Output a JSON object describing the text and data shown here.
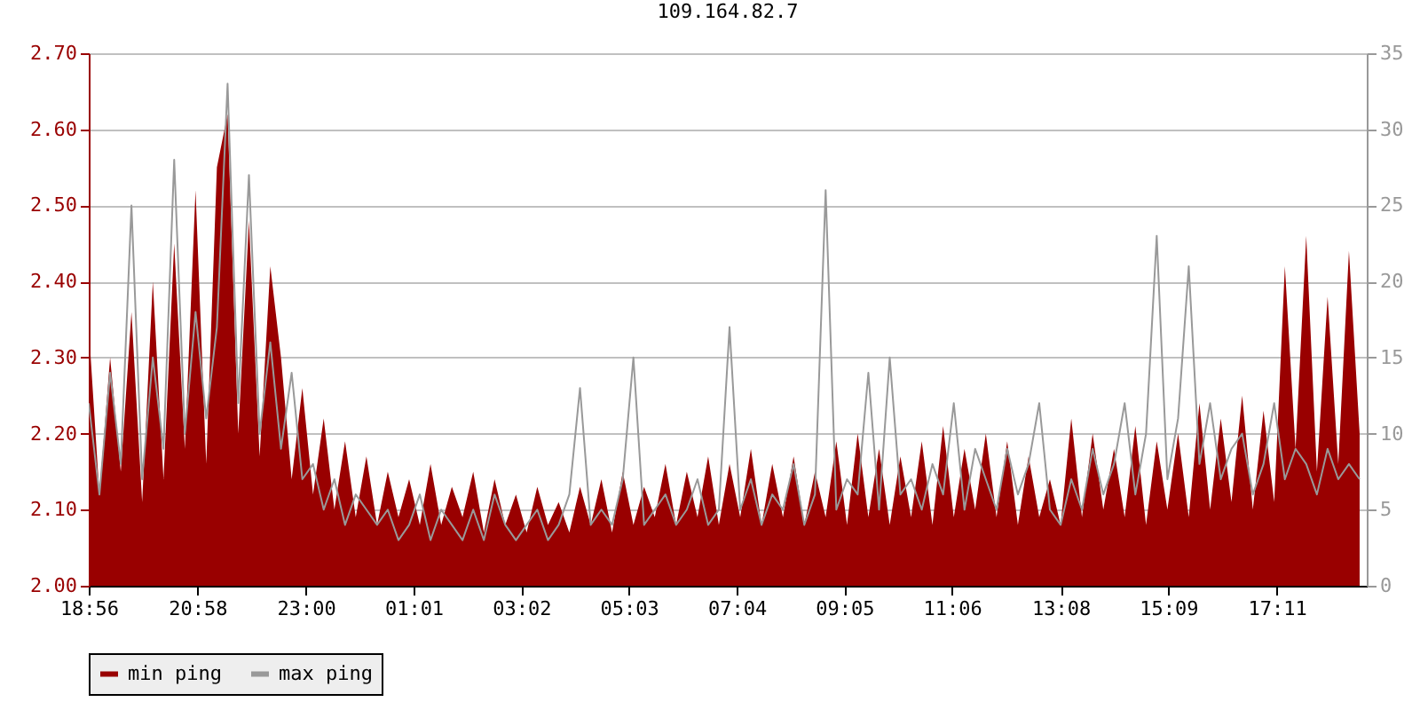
{
  "chart_data": {
    "type": "area",
    "title": "109.164.82.7",
    "x": [
      "2000-01-01T18:56",
      "2000-01-01T19:08",
      "2000-01-01T19:20",
      "2000-01-01T19:32",
      "2000-01-01T19:44",
      "2000-01-01T19:56",
      "2000-01-01T20:08",
      "2000-01-01T20:20",
      "2000-01-01T20:32",
      "2000-01-01T20:44",
      "2000-01-01T20:56",
      "2000-01-01T21:08",
      "2000-01-01T21:20",
      "2000-01-01T21:32",
      "2000-01-01T21:44",
      "2000-01-01T21:56",
      "2000-01-01T22:08",
      "2000-01-01T22:20",
      "2000-01-01T22:32",
      "2000-01-01T22:44",
      "2000-01-01T22:56",
      "2000-01-01T23:08",
      "2000-01-01T23:20",
      "2000-01-01T23:32",
      "2000-01-01T23:44",
      "2000-01-01T23:56",
      "2000-01-02T00:08",
      "2000-01-02T00:20",
      "2000-01-02T00:32",
      "2000-01-02T00:44",
      "2000-01-02T00:56",
      "2000-01-02T01:08",
      "2000-01-02T01:20",
      "2000-01-02T01:32",
      "2000-01-02T01:44",
      "2000-01-02T01:56",
      "2000-01-02T02:08",
      "2000-01-02T02:20",
      "2000-01-02T02:32",
      "2000-01-02T02:44",
      "2000-01-02T02:56",
      "2000-01-02T03:08",
      "2000-01-02T03:20",
      "2000-01-02T03:32",
      "2000-01-02T03:44",
      "2000-01-02T03:56",
      "2000-01-02T04:08",
      "2000-01-02T04:20",
      "2000-01-02T04:32",
      "2000-01-02T04:44",
      "2000-01-02T04:56",
      "2000-01-02T05:08",
      "2000-01-02T05:20",
      "2000-01-02T05:32",
      "2000-01-02T05:44",
      "2000-01-02T05:56",
      "2000-01-02T06:08",
      "2000-01-02T06:20",
      "2000-01-02T06:32",
      "2000-01-02T06:44",
      "2000-01-02T06:56",
      "2000-01-02T07:08",
      "2000-01-02T07:20",
      "2000-01-02T07:32",
      "2000-01-02T07:44",
      "2000-01-02T07:56",
      "2000-01-02T08:08",
      "2000-01-02T08:20",
      "2000-01-02T08:32",
      "2000-01-02T08:44",
      "2000-01-02T08:56",
      "2000-01-02T09:08",
      "2000-01-02T09:20",
      "2000-01-02T09:32",
      "2000-01-02T09:44",
      "2000-01-02T09:56",
      "2000-01-02T10:08",
      "2000-01-02T10:20",
      "2000-01-02T10:32",
      "2000-01-02T10:44",
      "2000-01-02T10:56",
      "2000-01-02T11:08",
      "2000-01-02T11:20",
      "2000-01-02T11:32",
      "2000-01-02T11:44",
      "2000-01-02T11:56",
      "2000-01-02T12:08",
      "2000-01-02T12:20",
      "2000-01-02T12:32",
      "2000-01-02T12:44",
      "2000-01-02T12:56",
      "2000-01-02T13:08",
      "2000-01-02T13:20",
      "2000-01-02T13:32",
      "2000-01-02T13:44",
      "2000-01-02T13:56",
      "2000-01-02T14:08",
      "2000-01-02T14:20",
      "2000-01-02T14:32",
      "2000-01-02T14:44",
      "2000-01-02T14:56",
      "2000-01-02T15:08",
      "2000-01-02T15:20",
      "2000-01-02T15:32",
      "2000-01-02T15:44",
      "2000-01-02T15:56",
      "2000-01-02T16:08",
      "2000-01-02T16:20",
      "2000-01-02T16:32",
      "2000-01-02T16:44",
      "2000-01-02T16:56",
      "2000-01-02T17:08",
      "2000-01-02T17:20",
      "2000-01-02T17:32",
      "2000-01-02T17:44",
      "2000-01-02T17:56",
      "2000-01-02T18:08",
      "2000-01-02T18:20",
      "2000-01-02T18:32",
      "2000-01-02T18:44"
    ],
    "series": [
      {
        "name": "min ping",
        "color": "#990000",
        "values": [
          2.34,
          2.12,
          2.3,
          2.15,
          2.36,
          2.11,
          2.4,
          2.14,
          2.45,
          2.18,
          2.52,
          2.16,
          2.55,
          2.62,
          2.2,
          2.48,
          2.17,
          2.42,
          2.3,
          2.14,
          2.26,
          2.12,
          2.22,
          2.1,
          2.19,
          2.09,
          2.17,
          2.08,
          2.15,
          2.09,
          2.14,
          2.08,
          2.16,
          2.08,
          2.13,
          2.09,
          2.15,
          2.07,
          2.14,
          2.08,
          2.12,
          2.07,
          2.13,
          2.08,
          2.11,
          2.07,
          2.13,
          2.08,
          2.14,
          2.07,
          2.15,
          2.08,
          2.13,
          2.09,
          2.16,
          2.08,
          2.15,
          2.09,
          2.17,
          2.08,
          2.16,
          2.09,
          2.18,
          2.08,
          2.16,
          2.09,
          2.17,
          2.08,
          2.15,
          2.09,
          2.19,
          2.08,
          2.2,
          2.09,
          2.18,
          2.08,
          2.17,
          2.09,
          2.19,
          2.08,
          2.21,
          2.09,
          2.18,
          2.1,
          2.2,
          2.09,
          2.19,
          2.08,
          2.17,
          2.09,
          2.14,
          2.08,
          2.22,
          2.09,
          2.2,
          2.1,
          2.18,
          2.09,
          2.21,
          2.08,
          2.19,
          2.1,
          2.2,
          2.09,
          2.24,
          2.1,
          2.22,
          2.11,
          2.25,
          2.1,
          2.23,
          2.11,
          2.42,
          2.18,
          2.46,
          2.15,
          2.38,
          2.16,
          2.44,
          2.2
        ]
      },
      {
        "name": "max ping",
        "color": "#999999",
        "type": "line",
        "axis": "y2",
        "values": [
          12,
          6,
          14,
          8,
          25,
          7,
          15,
          9,
          28,
          10,
          18,
          11,
          17,
          33,
          12,
          27,
          10,
          16,
          9,
          14,
          7,
          8,
          5,
          7,
          4,
          6,
          5,
          4,
          5,
          3,
          4,
          6,
          3,
          5,
          4,
          3,
          5,
          3,
          6,
          4,
          3,
          4,
          5,
          3,
          4,
          6,
          13,
          4,
          5,
          4,
          7,
          15,
          4,
          5,
          6,
          4,
          5,
          7,
          4,
          5,
          17,
          5,
          7,
          4,
          6,
          5,
          8,
          4,
          6,
          26,
          5,
          7,
          6,
          14,
          5,
          15,
          6,
          7,
          5,
          8,
          6,
          12,
          5,
          9,
          7,
          5,
          9,
          6,
          8,
          12,
          5,
          4,
          7,
          5,
          9,
          6,
          8,
          12,
          6,
          10,
          23,
          7,
          11,
          21,
          8,
          12,
          7,
          9,
          10,
          6,
          8,
          12,
          7,
          9,
          8,
          6,
          9,
          7,
          8,
          7
        ]
      }
    ],
    "xlim": [
      "2000-01-01T18:56",
      "2000-01-02T18:52"
    ],
    "xticks": [
      {
        "value": "2000-01-01T18:56",
        "label": "18:56"
      },
      {
        "value": "2000-01-01T20:58",
        "label": "20:58"
      },
      {
        "value": "2000-01-01T23:00",
        "label": "23:00"
      },
      {
        "value": "2000-01-02T01:01",
        "label": "01:01"
      },
      {
        "value": "2000-01-02T03:02",
        "label": "03:02"
      },
      {
        "value": "2000-01-02T05:03",
        "label": "05:03"
      },
      {
        "value": "2000-01-02T07:04",
        "label": "07:04"
      },
      {
        "value": "2000-01-02T09:05",
        "label": "09:05"
      },
      {
        "value": "2000-01-02T11:06",
        "label": "11:06"
      },
      {
        "value": "2000-01-02T13:08",
        "label": "13:08"
      },
      {
        "value": "2000-01-02T15:09",
        "label": "15:09"
      },
      {
        "value": "2000-01-02T17:11",
        "label": "17:11"
      }
    ],
    "ylim": [
      2.0,
      2.7
    ],
    "yticks": [
      {
        "value": 2.0,
        "label": "2.00"
      },
      {
        "value": 2.1,
        "label": "2.10"
      },
      {
        "value": 2.2,
        "label": "2.20"
      },
      {
        "value": 2.3,
        "label": "2.30"
      },
      {
        "value": 2.4,
        "label": "2.40"
      },
      {
        "value": 2.5,
        "label": "2.50"
      },
      {
        "value": 2.6,
        "label": "2.60"
      },
      {
        "value": 2.7,
        "label": "2.70"
      }
    ],
    "y2lim": [
      0,
      35
    ],
    "y2ticks": [
      0,
      5,
      10,
      15,
      20,
      25,
      30,
      35
    ],
    "grid": "y",
    "legend": "bottom"
  }
}
